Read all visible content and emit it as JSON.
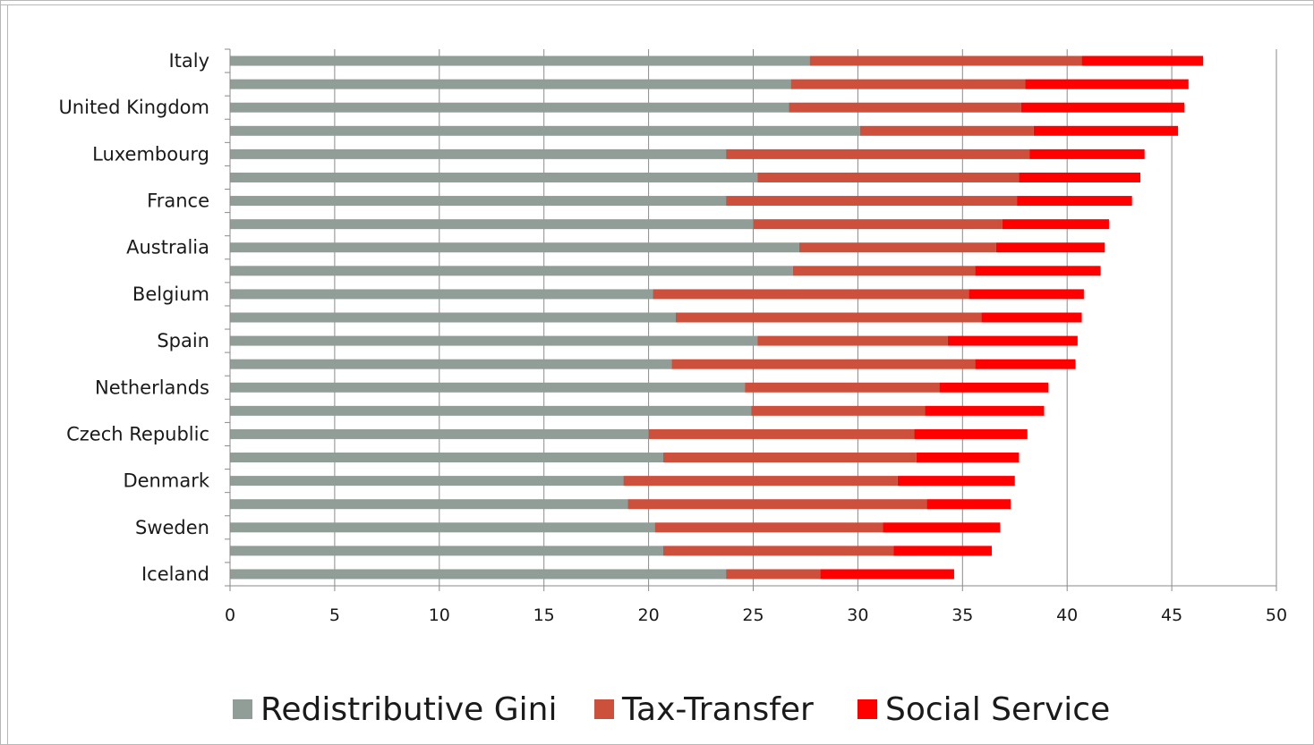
{
  "chart_data": {
    "type": "bar",
    "orientation": "horizontal",
    "stacked": true,
    "categories": [
      "Italy",
      "",
      "United Kingdom",
      "",
      "Luxembourg",
      "",
      "France",
      "",
      "Australia",
      "",
      "Belgium",
      "",
      "Spain",
      "",
      "Netherlands",
      "",
      "Czech Republic",
      "",
      "Denmark",
      "",
      "Sweden",
      "",
      "Iceland"
    ],
    "series": [
      {
        "name": "Redistributive Gini",
        "color": "#909e97",
        "values": [
          27.7,
          26.8,
          26.7,
          30.1,
          23.7,
          25.2,
          23.7,
          25.0,
          27.2,
          26.9,
          20.2,
          21.3,
          25.2,
          21.1,
          24.6,
          24.9,
          20.0,
          20.7,
          18.8,
          19.0,
          20.3,
          20.7,
          23.7
        ]
      },
      {
        "name": "Tax-Transfer",
        "color": "#cd503c",
        "values": [
          13.0,
          11.2,
          11.1,
          8.3,
          14.5,
          12.5,
          13.9,
          11.9,
          9.4,
          8.7,
          15.1,
          14.6,
          9.1,
          14.5,
          9.3,
          8.3,
          12.7,
          12.1,
          13.1,
          14.3,
          10.9,
          11.0,
          4.5
        ]
      },
      {
        "name": "Social Service",
        "color": "#ff0000",
        "values": [
          5.8,
          7.8,
          7.8,
          6.9,
          5.5,
          5.8,
          5.5,
          5.1,
          5.2,
          6.0,
          5.5,
          4.8,
          6.2,
          4.8,
          5.2,
          5.7,
          5.4,
          4.9,
          5.6,
          4.0,
          5.6,
          4.7,
          6.4
        ]
      }
    ],
    "xlim": [
      0,
      50
    ],
    "xticks": [
      0,
      5,
      10,
      15,
      20,
      25,
      30,
      35,
      40,
      45,
      50
    ],
    "grid": true,
    "legend": "bottom",
    "title": "",
    "xlabel": "",
    "ylabel": ""
  }
}
